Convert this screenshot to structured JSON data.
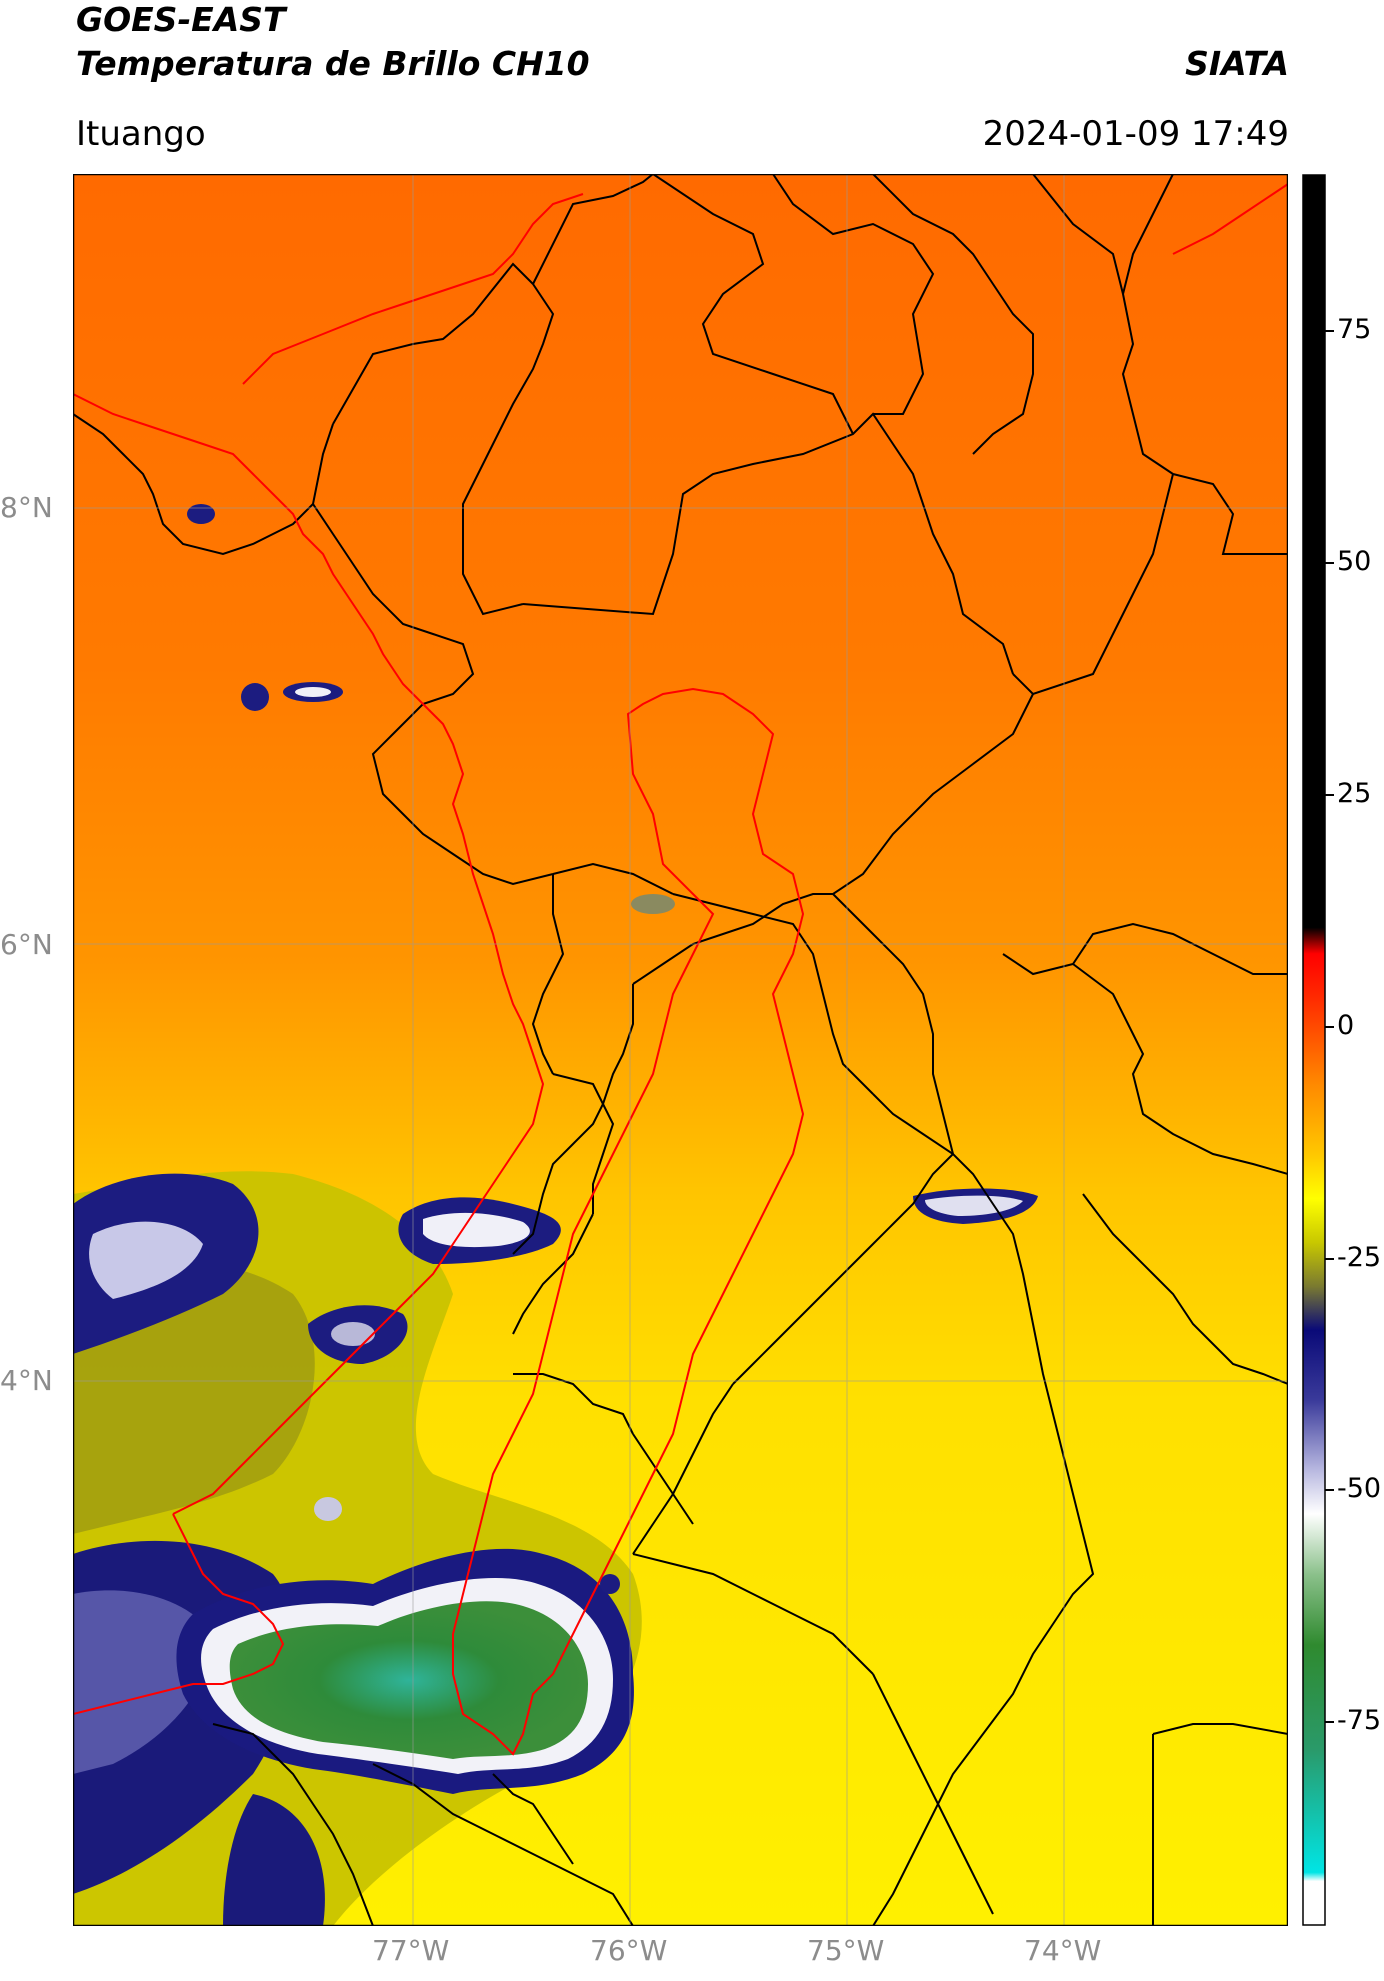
{
  "header": {
    "title_line1": "GOES-EAST",
    "title_line2": "Temperatura de Brillo CH10",
    "brand": "SIATA",
    "location": "Ituango",
    "datetime": "2024-01-09 17:49"
  },
  "map": {
    "lat_labels": [
      "8°N",
      "6°N",
      "4°N"
    ],
    "lon_labels": [
      "77°W",
      "76°W",
      "75°W",
      "74°W"
    ],
    "gridlines": true,
    "colors": {
      "warm_orange": "#ff6a00",
      "orange": "#ff9900",
      "yellow": "#ffee00",
      "olive": "#b8b400",
      "navy": "#15157a",
      "white": "#ffffff",
      "green": "#2e8b3a",
      "teal": "#2fb49a",
      "border_black": "#000000",
      "border_red": "#ff0000"
    }
  },
  "colorbar": {
    "ticks": [
      "75",
      "50",
      "25",
      "0",
      "-25",
      "-50",
      "-75"
    ],
    "range": [
      -96,
      92
    ],
    "colors": {
      "black": "#000000",
      "red": "#ff0000",
      "orange": "#ff8800",
      "yellow": "#ffff00",
      "olive": "#a8a800",
      "navy": "#0a0a78",
      "white": "#ffffff",
      "green": "#2f8a2f",
      "cyan": "#00e5e5"
    }
  }
}
